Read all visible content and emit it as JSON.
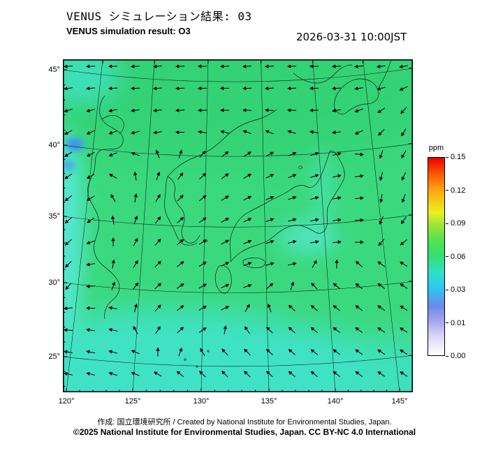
{
  "header": {
    "title_jp": "VENUS シミュレーション結果: 03",
    "title_en": "VENUS simulation result: O3",
    "datetime": "2026-03-31 10:00JST"
  },
  "chart_data": {
    "type": "heatmap",
    "title": "VENUS simulation result: O3",
    "timestamp": "2026-03-31 10:00JST",
    "region": "East Asia / Japan",
    "x_axis": {
      "name": "longitude",
      "tick_labels": [
        "120°",
        "125°",
        "130°",
        "135°",
        "140°",
        "145°"
      ],
      "range_deg": [
        119.5,
        146.0
      ]
    },
    "y_axis": {
      "name": "latitude",
      "tick_labels": [
        "45°",
        "40°",
        "35°",
        "30°",
        "25°"
      ],
      "range_deg": [
        24.0,
        46.5
      ]
    },
    "colorbar": {
      "label": "ppm",
      "unit": "ppm",
      "min": 0.0,
      "max": 0.15,
      "tick_labels_top_to_bottom": [
        "0.15",
        "0.12",
        "0.09",
        "0.06",
        "0.03",
        "0.01",
        "0.00"
      ],
      "gradient_stops_bottom_to_top": [
        {
          "pos": 0.0,
          "color": "#ffffff"
        },
        {
          "pos": 0.1,
          "color": "#d9d5f5"
        },
        {
          "pos": 0.167,
          "color": "#a9a7ef"
        },
        {
          "pos": 0.25,
          "color": "#6e87ec"
        },
        {
          "pos": 0.333,
          "color": "#2fc3f2"
        },
        {
          "pos": 0.417,
          "color": "#2ee0c8"
        },
        {
          "pos": 0.5,
          "color": "#35df76"
        },
        {
          "pos": 0.583,
          "color": "#52e24e"
        },
        {
          "pos": 0.667,
          "color": "#a5e637"
        },
        {
          "pos": 0.722,
          "color": "#eaf020"
        },
        {
          "pos": 0.833,
          "color": "#ffa810"
        },
        {
          "pos": 0.917,
          "color": "#ff5a00"
        },
        {
          "pos": 1.0,
          "color": "#e80000"
        }
      ]
    },
    "field_approx_ppm": {
      "dominant_green_area": 0.05,
      "southern_cyan_band": 0.035,
      "left_edge_cyan_patches": 0.03,
      "small_blue_coastal_spots": 0.02,
      "overall_range_visible": [
        0.02,
        0.06
      ]
    },
    "overlays": [
      "wind vector arrows",
      "coastlines",
      "latitude-longitude graticule"
    ],
    "map_colors": {
      "base_green": "#3bd97e",
      "deep_green": "#2ecf6f",
      "cyan": "#40e2c6",
      "light_cyan": "#55e8d4",
      "blue_spot": "#3f8df2"
    },
    "wind_vectors": {
      "cols": 16,
      "rows": 15,
      "angle_convention": "degrees CCW from east; direction the arrow points (approximate, read from image)",
      "angles_deg": [
        [
          185,
          183,
          181,
          184,
          186,
          182,
          180,
          183,
          185,
          184,
          182,
          180,
          183,
          186,
          188,
          190
        ],
        [
          188,
          186,
          184,
          182,
          185,
          183,
          181,
          180,
          182,
          184,
          183,
          181,
          184,
          188,
          196,
          205
        ],
        [
          198,
          195,
          192,
          188,
          186,
          184,
          182,
          180,
          178,
          176,
          178,
          182,
          190,
          200,
          215,
          228
        ],
        [
          208,
          204,
          200,
          195,
          188,
          180,
          172,
          165,
          160,
          158,
          162,
          170,
          185,
          205,
          225,
          238
        ],
        [
          212,
          208,
          202,
          160,
          110,
          70,
          48,
          38,
          32,
          28,
          24,
          20,
          15,
          355,
          250,
          240
        ],
        [
          215,
          210,
          150,
          100,
          70,
          52,
          42,
          36,
          30,
          26,
          22,
          18,
          12,
          8,
          255,
          245
        ],
        [
          218,
          212,
          120,
          80,
          58,
          46,
          38,
          32,
          27,
          23,
          19,
          15,
          10,
          5,
          260,
          250
        ],
        [
          220,
          214,
          100,
          70,
          52,
          42,
          35,
          30,
          25,
          21,
          17,
          13,
          8,
          3,
          245,
          235
        ],
        [
          222,
          200,
          90,
          62,
          48,
          40,
          33,
          28,
          23,
          19,
          15,
          11,
          6,
          0,
          230,
          220
        ],
        [
          225,
          190,
          80,
          58,
          45,
          38,
          32,
          27,
          22,
          17,
          12,
          60,
          90,
          140,
          145,
          148
        ],
        [
          228,
          185,
          70,
          52,
          42,
          35,
          30,
          25,
          20,
          40,
          70,
          135,
          140,
          142,
          144,
          146
        ],
        [
          186,
          178,
          170,
          75,
          48,
          38,
          30,
          25,
          60,
          110,
          138,
          140,
          141,
          143,
          145,
          147
        ],
        [
          176,
          172,
          168,
          120,
          58,
          42,
          34,
          80,
          125,
          136,
          139,
          141,
          143,
          144,
          146,
          148
        ],
        [
          170,
          168,
          164,
          158,
          90,
          70,
          120,
          133,
          136,
          138,
          140,
          142,
          143,
          145,
          146,
          148
        ],
        [
          168,
          166,
          163,
          158,
          150,
          140,
          136,
          134,
          136,
          138,
          140,
          141,
          142,
          144,
          145,
          147
        ]
      ]
    }
  },
  "footer": {
    "credit": "作成: 国立環境研究所 / Created by National Institute for Environmental Studies, Japan.",
    "license": "©2025 National Institute for Environmental Studies, Japan. CC BY-NC 4.0 International"
  }
}
